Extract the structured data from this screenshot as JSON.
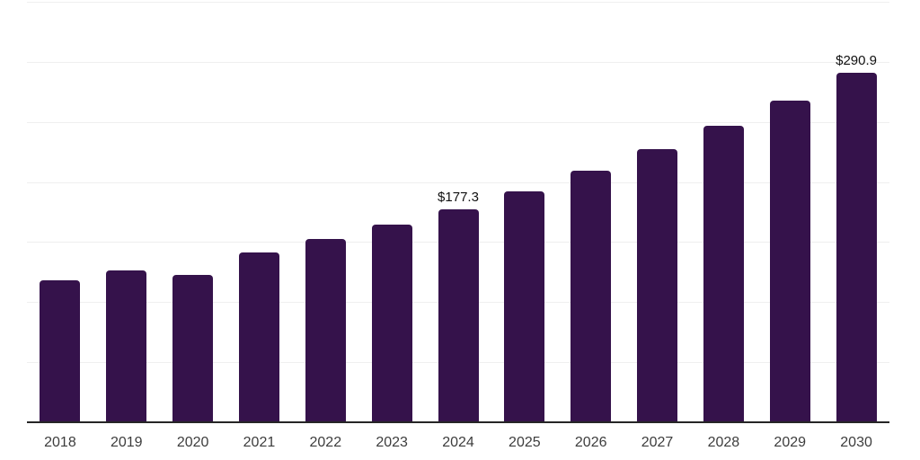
{
  "chart_data": {
    "type": "bar",
    "title": "",
    "xlabel": "",
    "ylabel": "",
    "categories": [
      "2018",
      "2019",
      "2020",
      "2021",
      "2022",
      "2023",
      "2024",
      "2025",
      "2026",
      "2027",
      "2028",
      "2029",
      "2030"
    ],
    "values": [
      118.4,
      126.1,
      122.4,
      141.5,
      152.5,
      164.5,
      177.3,
      192.5,
      209.1,
      227.1,
      246.6,
      267.8,
      290.9
    ],
    "data_labels": [
      "",
      "",
      "",
      "",
      "",
      "",
      "$177.3",
      "",
      "",
      "",
      "",
      "",
      "$290.9"
    ],
    "ylim": [
      0,
      350
    ],
    "gridline_step": 50,
    "grid": true,
    "legend": false,
    "colors": {
      "bar": "#35124B",
      "axis_line": "#262626",
      "gridline": "#efefef",
      "value_label": "#111111",
      "tick_label": "#3d3d3d",
      "background": "#ffffff"
    }
  }
}
